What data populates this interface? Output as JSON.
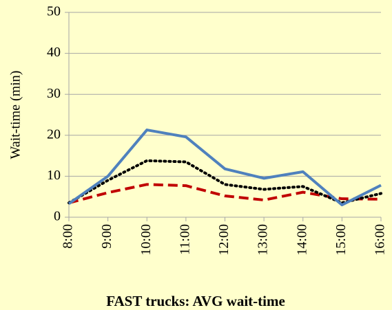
{
  "chart_data": {
    "type": "line",
    "title": "FAST trucks: AVG wait-time",
    "y_label": "Wait-time (min)",
    "categories": [
      "8:00",
      "9:00",
      "10:00",
      "11:00",
      "12:00",
      "13:00",
      "14:00",
      "15:00",
      "16:00"
    ],
    "series": [
      {
        "color": "#4f81bd",
        "style": "solid",
        "values": [
          3.3,
          10,
          21.3,
          19.6,
          11.8,
          9.5,
          11.1,
          3,
          7.8
        ]
      },
      {
        "color": "#000000",
        "style": "dotted",
        "values": [
          3.5,
          9,
          13.8,
          13.5,
          8,
          6.8,
          7.5,
          3.5,
          5.8
        ]
      },
      {
        "color": "#c00000",
        "style": "dashed",
        "values": [
          3.5,
          6,
          8,
          7.7,
          5.2,
          4.2,
          6.1,
          4.5,
          4.4
        ]
      }
    ],
    "ylim": [
      0,
      50
    ],
    "yticks": [
      0,
      10,
      20,
      30,
      40,
      50
    ],
    "grid": true
  }
}
